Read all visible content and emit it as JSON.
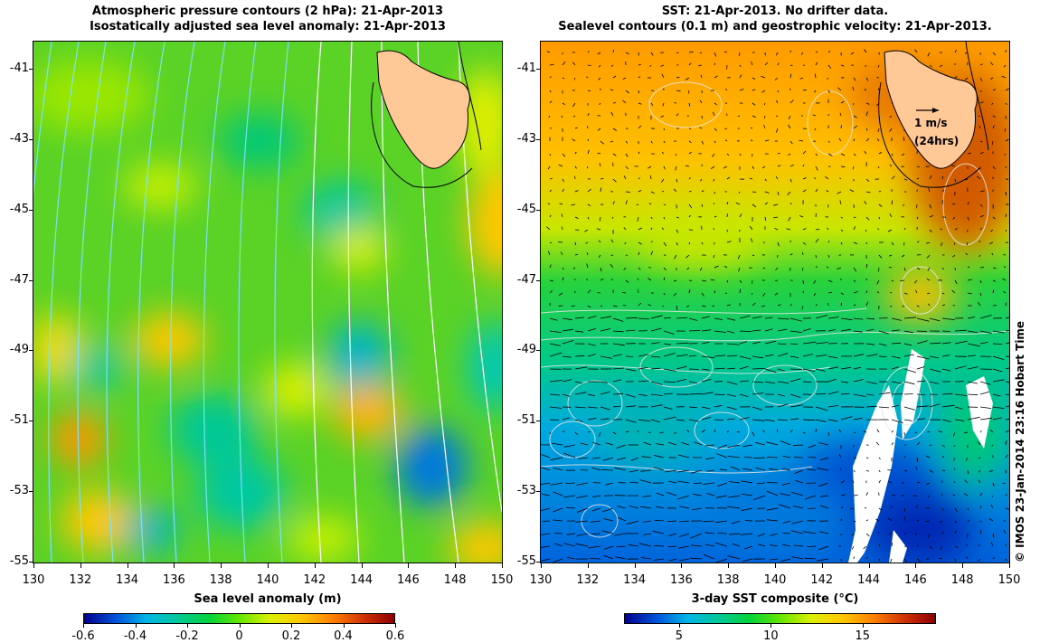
{
  "left_panel": {
    "title_line1": "Atmospheric pressure contours (2 hPa): 21-Apr-2013",
    "title_line2": "Isostatically adjusted sea level anomaly: 21-Apr-2013",
    "colorbar_label": "Sea level anomaly (m)",
    "colorbar_ticks": [
      "-0.6",
      "-0.4",
      "-0.2",
      "0",
      "0.2",
      "0.4",
      "0.6"
    ],
    "colorbar_range": [
      -0.6,
      0.6
    ],
    "colormap": [
      "#00008c",
      "#0050d8",
      "#00b4e6",
      "#00c89a",
      "#00d23c",
      "#64e600",
      "#dcf000",
      "#ffc800",
      "#ff8200",
      "#d23200",
      "#8c0000"
    ]
  },
  "right_panel": {
    "title_line1": "SST: 21-Apr-2013. No drifter data.",
    "title_line2": "Sealevel contours (0.1 m) and geostrophic velocity: 21-Apr-2013.",
    "colorbar_label": "3-day SST composite (°C)",
    "colorbar_ticks": [
      "5",
      "10",
      "15"
    ],
    "colorbar_range": [
      2,
      19
    ],
    "colormap": [
      "#00008c",
      "#0050d8",
      "#00b4e6",
      "#00c89a",
      "#00d23c",
      "#64e600",
      "#dcf000",
      "#ffc800",
      "#ff8200",
      "#d23200",
      "#8c0000"
    ],
    "velocity_scale_label": "1 m/s",
    "velocity_scale_sublabel": "(24hrs)"
  },
  "axes": {
    "lon_ticks": [
      "130",
      "132",
      "134",
      "136",
      "138",
      "140",
      "142",
      "144",
      "146",
      "148",
      "150"
    ],
    "lat_ticks": [
      "-41",
      "-43",
      "-45",
      "-47",
      "-49",
      "-51",
      "-53",
      "-55"
    ],
    "lon_range": [
      130,
      150
    ],
    "lat_range": [
      -55,
      -40.2
    ]
  },
  "credit": "© IMOS 23-Jan-2014 23:16 Hobart Time",
  "land_color": "#ffc896"
}
